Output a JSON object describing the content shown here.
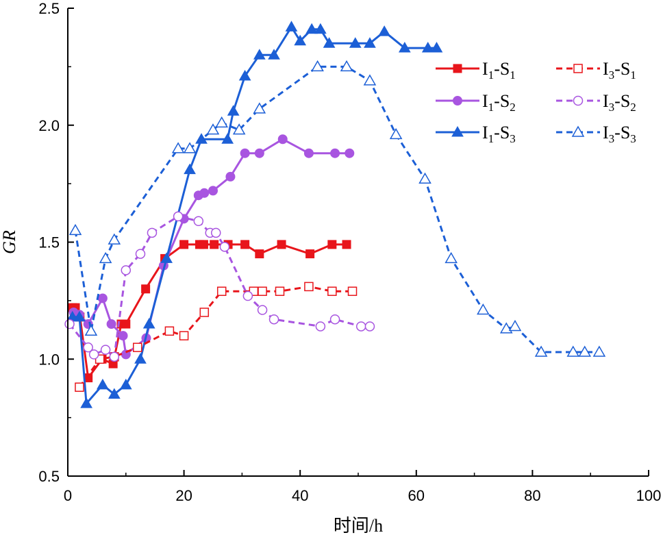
{
  "chart_data": {
    "type": "line",
    "title": "",
    "xlabel": "时间/h",
    "ylabel": "GR",
    "xlim": [
      0,
      100
    ],
    "ylim": [
      0.5,
      2.5
    ],
    "x_ticks": [
      0,
      20,
      40,
      60,
      80,
      100
    ],
    "x_tick_labels": [
      "0",
      "20",
      "40",
      "60",
      "80",
      "100"
    ],
    "y_ticks": [
      0.5,
      1.0,
      1.5,
      2.0,
      2.5
    ],
    "y_tick_labels": [
      "0.5",
      "1.0",
      "1.5",
      "2.0",
      "2.5"
    ],
    "legend_position": "top-right",
    "series": [
      {
        "name": "I1-S1",
        "main": "I",
        "sub1": "1",
        "mid": "-S",
        "sub2": "1",
        "color": "#e8151b",
        "marker": "square",
        "filled": true,
        "dashed": false,
        "x": [
          0.8,
          1.3,
          2.1,
          3.5,
          5.9,
          7.8,
          9.2,
          10.0,
          13.4,
          16.7,
          20.0,
          22.7,
          23.4,
          25.2,
          27.6,
          30.5,
          33.0,
          36.8,
          41.7,
          45.5,
          48.0
        ],
        "y": [
          1.22,
          1.22,
          1.18,
          0.92,
          1.0,
          0.98,
          1.15,
          1.15,
          1.3,
          1.43,
          1.49,
          1.49,
          1.49,
          1.49,
          1.49,
          1.49,
          1.45,
          1.49,
          1.45,
          1.49,
          1.49
        ]
      },
      {
        "name": "I1-S2",
        "main": "I",
        "sub1": "1",
        "mid": "-S",
        "sub2": "2",
        "color": "#a855e0",
        "marker": "circle",
        "filled": true,
        "dashed": false,
        "x": [
          1.0,
          2.0,
          3.5,
          6.0,
          7.5,
          9.5,
          10.0,
          13.5,
          16.5,
          20.0,
          22.5,
          23.5,
          25.0,
          28.0,
          30.5,
          33.0,
          37.0,
          41.5,
          46.0,
          48.5
        ],
        "y": [
          1.2,
          1.19,
          1.15,
          1.26,
          1.15,
          1.1,
          1.02,
          1.09,
          1.4,
          1.6,
          1.7,
          1.71,
          1.72,
          1.78,
          1.88,
          1.88,
          1.94,
          1.88,
          1.88,
          1.88
        ]
      },
      {
        "name": "I1-S3",
        "main": "I",
        "sub1": "1",
        "mid": "-S",
        "sub2": "3",
        "color": "#1c5fd6",
        "marker": "triangle",
        "filled": true,
        "dashed": false,
        "x": [
          0.8,
          2.0,
          3.2,
          6.0,
          8.0,
          10.0,
          12.5,
          14.0,
          17.0,
          21.0,
          23.0,
          27.5,
          28.5,
          30.5,
          33.0,
          35.5,
          38.5,
          40.0,
          42.0,
          43.5,
          45.0,
          49.5,
          52.0,
          54.5,
          58.0,
          62.0,
          63.5
        ],
        "y": [
          1.18,
          1.18,
          0.81,
          0.89,
          0.85,
          0.89,
          1.0,
          1.15,
          1.43,
          1.81,
          1.94,
          1.94,
          2.06,
          2.21,
          2.3,
          2.3,
          2.42,
          2.36,
          2.41,
          2.41,
          2.35,
          2.35,
          2.35,
          2.4,
          2.33,
          2.33,
          2.33
        ]
      },
      {
        "name": "I3-S1",
        "main": "I",
        "sub1": "3",
        "mid": "-S",
        "sub2": "1",
        "color": "#e8151b",
        "marker": "square",
        "filled": false,
        "dashed": true,
        "x": [
          2.0,
          5.5,
          8.0,
          12.0,
          17.5,
          20.0,
          23.5,
          26.5,
          32.0,
          33.5,
          36.5,
          41.5,
          45.5,
          49.0
        ],
        "y": [
          0.88,
          1.0,
          1.01,
          1.05,
          1.12,
          1.1,
          1.2,
          1.29,
          1.29,
          1.29,
          1.29,
          1.31,
          1.29,
          1.29
        ]
      },
      {
        "name": "I3-S2",
        "main": "I",
        "sub1": "3",
        "mid": "-S",
        "sub2": "2",
        "color": "#a855e0",
        "marker": "circle",
        "filled": false,
        "dashed": true,
        "x": [
          0.3,
          3.5,
          4.5,
          6.5,
          8.0,
          10.0,
          12.5,
          14.5,
          19.0,
          22.5,
          24.5,
          25.5,
          27.0,
          31.0,
          33.5,
          35.5,
          43.5,
          46.0,
          50.5,
          52.0
        ],
        "y": [
          1.15,
          1.05,
          1.02,
          1.04,
          1.01,
          1.38,
          1.45,
          1.54,
          1.61,
          1.59,
          1.54,
          1.54,
          1.48,
          1.27,
          1.21,
          1.17,
          1.14,
          1.17,
          1.14,
          1.14
        ]
      },
      {
        "name": "I3-S3",
        "main": "I",
        "sub1": "3",
        "mid": "-S",
        "sub2": "3",
        "color": "#1c5fd6",
        "marker": "triangle",
        "filled": false,
        "dashed": true,
        "x": [
          1.3,
          4.0,
          6.5,
          8.0,
          19.0,
          21.0,
          25.0,
          26.5,
          29.5,
          33.0,
          43.0,
          48.0,
          52.0,
          56.5,
          61.5,
          66.0,
          71.5,
          75.5,
          77.0,
          81.5,
          87.0,
          89.0,
          91.5
        ],
        "y": [
          1.55,
          1.12,
          1.43,
          1.51,
          1.9,
          1.9,
          1.98,
          2.01,
          1.98,
          2.07,
          2.25,
          2.25,
          2.19,
          1.96,
          1.77,
          1.43,
          1.21,
          1.13,
          1.14,
          1.03,
          1.03,
          1.03,
          1.03
        ]
      }
    ]
  }
}
